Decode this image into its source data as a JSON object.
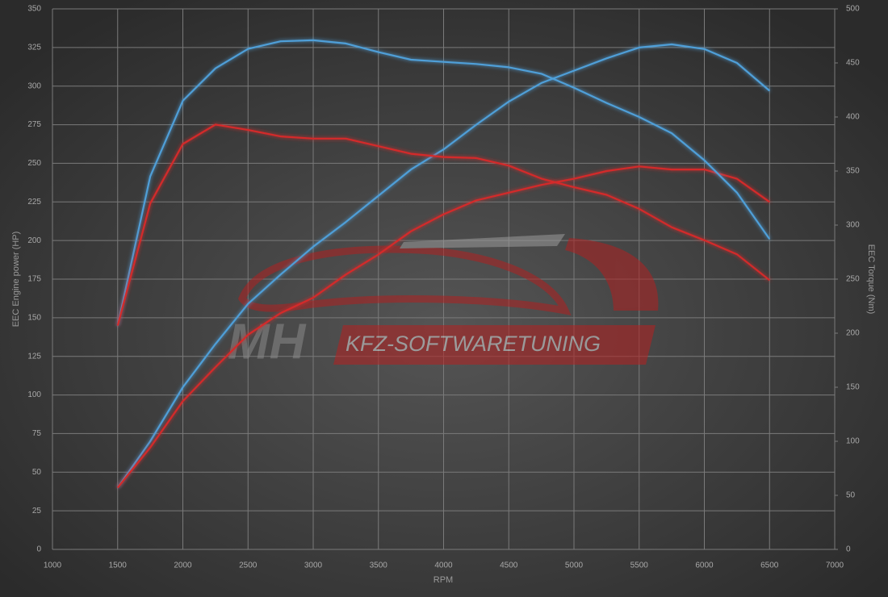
{
  "chart_data": {
    "type": "line",
    "x_label": "RPM",
    "y_label": "EEC Engine power (HP)",
    "y2_label": "EEC Torque (Nm)",
    "watermark": {
      "logo": "MH",
      "text": "KFZ-SOFTWARETUNING"
    },
    "x": [
      1500,
      1750,
      2000,
      2250,
      2500,
      2750,
      3000,
      3250,
      3500,
      3750,
      4000,
      4250,
      4500,
      4750,
      5000,
      5250,
      5500,
      5750,
      6000,
      6250,
      6500
    ],
    "xlim": [
      1000,
      7000
    ],
    "xticks": [
      1000,
      1500,
      2000,
      2500,
      3000,
      3500,
      4000,
      4500,
      5000,
      5500,
      6000,
      6500,
      7000
    ],
    "ylim": [
      0,
      350
    ],
    "yticks": [
      0,
      25,
      50,
      75,
      100,
      125,
      150,
      175,
      200,
      225,
      250,
      275,
      300,
      325,
      350
    ],
    "y2lim": [
      0,
      500
    ],
    "y2ticks": [
      0,
      50,
      100,
      150,
      200,
      250,
      300,
      350,
      400,
      450,
      500
    ],
    "grid": true,
    "series": [
      {
        "color": "#4f9fd8",
        "values": [
          40,
          70,
          105,
          133,
          159,
          178,
          196,
          212,
          229,
          246,
          259,
          275,
          290,
          302,
          310,
          318,
          325,
          327,
          324,
          315,
          297
        ]
      },
      {
        "color": "#d42a2a",
        "values": [
          40,
          66,
          96,
          118,
          139,
          153,
          163,
          178,
          191,
          206,
          217,
          226,
          231,
          236,
          240,
          245,
          248,
          246,
          246,
          240,
          225
        ]
      },
      {
        "color": "#4f9fd8",
        "axis": "y2",
        "values": [
          207,
          345,
          415,
          445,
          463,
          470,
          471,
          468,
          460,
          453,
          451,
          449,
          446,
          440,
          427,
          413,
          400,
          385,
          360,
          330,
          287
        ]
      },
      {
        "color": "#d42a2a",
        "axis": "y2",
        "values": [
          207,
          320,
          375,
          393,
          388,
          382,
          380,
          380,
          373,
          366,
          363,
          362,
          355,
          343,
          335,
          328,
          315,
          298,
          286,
          273,
          249
        ]
      }
    ]
  }
}
